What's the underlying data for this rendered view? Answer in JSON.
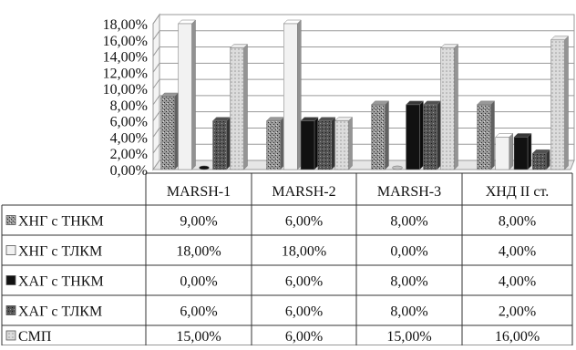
{
  "chart_data": {
    "type": "bar",
    "categories": [
      "MARSH-1",
      "MARSH-2",
      "MARSH-3",
      "ХНД II ст."
    ],
    "y_ticks": [
      "0,00%",
      "2,00%",
      "4,00%",
      "6,00%",
      "8,00%",
      "10,00%",
      "12,00%",
      "14,00%",
      "16,00%",
      "18,00%"
    ],
    "ylim": [
      0,
      18
    ],
    "grid": true,
    "legend_placement": "table-left",
    "series": [
      {
        "name": "ХНГ с ТНКМ",
        "values": [
          9,
          6,
          8,
          8
        ],
        "labels": [
          "9,00%",
          "6,00%",
          "8,00%",
          "8,00%"
        ],
        "color": "#8a8a8a",
        "pattern": "speckle"
      },
      {
        "name": "ХНГ с ТЛКМ",
        "values": [
          18,
          18,
          0,
          4
        ],
        "labels": [
          "18,00%",
          "18,00%",
          "0,00%",
          "4,00%"
        ],
        "color": "#f2f2f2",
        "pattern": "solid"
      },
      {
        "name": "ХАГ с ТНКМ",
        "values": [
          0,
          6,
          8,
          4
        ],
        "labels": [
          "0,00%",
          "6,00%",
          "8,00%",
          "4,00%"
        ],
        "color": "#111111",
        "pattern": "solid"
      },
      {
        "name": "ХАГ с ТЛКМ",
        "values": [
          6,
          6,
          8,
          2
        ],
        "labels": [
          "6,00%",
          "6,00%",
          "8,00%",
          "2,00%"
        ],
        "color": "#4a4a4a",
        "pattern": "speckle"
      },
      {
        "name": "СМП",
        "values": [
          15,
          6,
          15,
          16
        ],
        "labels": [
          "15,00%",
          "6,00%",
          "15,00%",
          "16,00%"
        ],
        "color": "#d4d4d4",
        "pattern": "dots"
      }
    ]
  }
}
